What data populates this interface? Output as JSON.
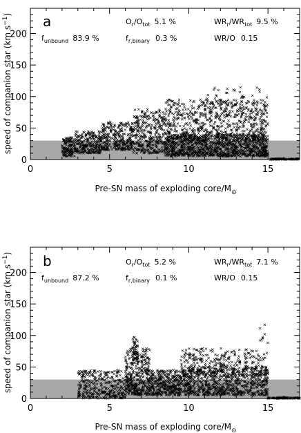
{
  "figure": {
    "panels": [
      {
        "label": "a",
        "ratio_o": {
          "main": "O",
          "sub1": "r",
          "mid": "/O",
          "sub2": "tot",
          "value": "5.1 %"
        },
        "ratio_wr": {
          "main": "WR",
          "sub1": "r",
          "mid": "/WR",
          "sub2": "tot",
          "value": "9.5 %"
        },
        "f_unbound": {
          "main": "f",
          "sub": "unbound",
          "value": "83.9 %"
        },
        "f_binary": {
          "main": "f",
          "sub": "r,binary",
          "value": "0.3 %"
        },
        "wr_o": {
          "label": "WR/O",
          "value": "0.15"
        }
      },
      {
        "label": "b",
        "ratio_o": {
          "main": "O",
          "sub1": "r",
          "mid": "/O",
          "sub2": "tot",
          "value": "5.2 %"
        },
        "ratio_wr": {
          "main": "WR",
          "sub1": "r",
          "mid": "/WR",
          "sub2": "tot",
          "value": "7.1 %"
        },
        "f_unbound": {
          "main": "f",
          "sub": "unbound",
          "value": "87.2 %"
        },
        "f_binary": {
          "main": "f",
          "sub": "r,binary",
          "value": "0.1 %"
        },
        "wr_o": {
          "label": "WR/O",
          "value": "0.15"
        }
      }
    ],
    "xlabel": {
      "text": "Pre-SN mass of exploding core/M",
      "sub": "⊙"
    },
    "ylabel": {
      "text": "speed of companion star (km s",
      "sup": "−1",
      "close": ")"
    }
  },
  "chart_data": [
    {
      "type": "scatter",
      "panel": "a",
      "xlim": [
        0,
        17
      ],
      "ylim": [
        0,
        240
      ],
      "xticks": [
        0,
        5,
        10,
        15
      ],
      "yticks": [
        0,
        50,
        100,
        150,
        200
      ],
      "shaded_band": [
        0,
        30
      ],
      "marker": "x",
      "grid": false,
      "series": [
        {
          "clusters": [
            {
              "x": [
                2.0,
                2.8
              ],
              "y": [
                5,
                35
              ],
              "n": 140
            },
            {
              "x": [
                2.8,
                4.5
              ],
              "y": [
                10,
                45
              ],
              "n": 240
            },
            {
              "x": [
                4.5,
                6.5
              ],
              "y": [
                15,
                60
              ],
              "n": 300
            },
            {
              "x": [
                6.5,
                8.5
              ],
              "y": [
                10,
                80
              ],
              "n": 340
            },
            {
              "x": [
                8.5,
                15.0
              ],
              "y": [
                5,
                40
              ],
              "n": 1100
            },
            {
              "x": [
                8.5,
                15.0
              ],
              "y": [
                30,
                95
              ],
              "n": 650
            },
            {
              "x": [
                11.0,
                15.0
              ],
              "y": [
                70,
                115
              ],
              "n": 90
            },
            {
              "x": [
                15.0,
                17.0
              ],
              "y": [
                0,
                1.5
              ],
              "n": 80
            }
          ]
        }
      ]
    },
    {
      "type": "scatter",
      "panel": "b",
      "xlim": [
        0,
        17
      ],
      "ylim": [
        0,
        240
      ],
      "xticks": [
        0,
        5,
        10,
        15
      ],
      "yticks": [
        0,
        50,
        100,
        150,
        200
      ],
      "shaded_band": [
        0,
        30
      ],
      "marker": "x",
      "grid": false,
      "series": [
        {
          "clusters": [
            {
              "x": [
                3.0,
                6.0
              ],
              "y": [
                0,
                45
              ],
              "n": 320
            },
            {
              "x": [
                6.0,
                7.6
              ],
              "y": [
                5,
                80
              ],
              "n": 380
            },
            {
              "x": [
                6.4,
                6.8
              ],
              "y": [
                60,
                100
              ],
              "n": 50
            },
            {
              "x": [
                7.6,
                10.0
              ],
              "y": [
                5,
                45
              ],
              "n": 420
            },
            {
              "x": [
                10.0,
                15.0
              ],
              "y": [
                5,
                50
              ],
              "n": 700
            },
            {
              "x": [
                9.5,
                15.0
              ],
              "y": [
                35,
                80
              ],
              "n": 320
            },
            {
              "x": [
                14.5,
                15.0
              ],
              "y": [
                80,
                125
              ],
              "n": 8
            },
            {
              "x": [
                15.0,
                17.0
              ],
              "y": [
                0,
                1.5
              ],
              "n": 80
            }
          ]
        }
      ]
    }
  ]
}
